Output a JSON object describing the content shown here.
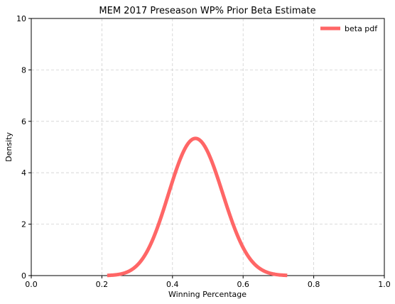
{
  "chart_data": {
    "type": "line",
    "title": "MEM 2017 Preseason WP% Prior Beta Estimate",
    "xlabel": "Winning Percentage",
    "ylabel": "Density",
    "xlim": [
      0.0,
      1.0
    ],
    "ylim": [
      0,
      10
    ],
    "xticks": [
      0.0,
      0.2,
      0.4,
      0.6,
      0.8,
      1.0
    ],
    "xtick_labels": [
      "0.0",
      "0.2",
      "0.4",
      "0.6",
      "0.8",
      "1.0"
    ],
    "yticks": [
      0,
      2,
      4,
      6,
      8,
      10
    ],
    "ytick_labels": [
      "0",
      "2",
      "4",
      "6",
      "8",
      "10"
    ],
    "grid": true,
    "legend_position": "top-right",
    "series": [
      {
        "name": "beta pdf",
        "color": "#ff6666",
        "distribution": {
          "family": "beta",
          "alpha": 21,
          "beta": 24
        },
        "x_range": [
          0.215,
          0.725
        ]
      }
    ]
  }
}
